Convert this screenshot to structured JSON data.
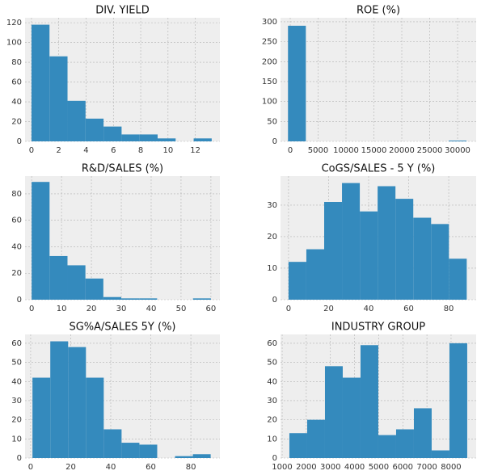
{
  "chart_data": [
    {
      "type": "histogram",
      "title": "DIV. YIELD",
      "bins": [
        0,
        1.32,
        2.64,
        3.96,
        5.28,
        6.6,
        7.92,
        9.24,
        10.56,
        11.88,
        13.2
      ],
      "values": [
        118,
        86,
        41,
        23,
        15,
        7,
        7,
        3,
        0,
        3
      ],
      "color": "#348ABD",
      "xlim": [
        -0.47,
        13.8
      ],
      "ylim": [
        0,
        125
      ],
      "xticks": [
        0,
        2,
        4,
        6,
        8,
        10,
        12
      ],
      "yticks": [
        0,
        20,
        40,
        60,
        80,
        100,
        120
      ],
      "grid": true
    },
    {
      "type": "histogram",
      "title": "ROE (%)",
      "bins": [
        -400,
        2800,
        6000,
        9200,
        12400,
        15600,
        18800,
        22000,
        25200,
        28400,
        31600
      ],
      "values": [
        290,
        0,
        0,
        0,
        0,
        0,
        0,
        0,
        0,
        2
      ],
      "color": "#348ABD",
      "xlim": [
        -1740,
        33330
      ],
      "ylim": [
        0,
        310
      ],
      "xticks": [
        0,
        5000,
        10000,
        15000,
        20000,
        25000,
        30000
      ],
      "yticks": [
        0,
        50,
        100,
        150,
        200,
        250,
        300
      ],
      "grid": true
    },
    {
      "type": "histogram",
      "title": "R&D/SALES (%)",
      "bins": [
        0,
        6,
        12,
        18,
        24,
        30,
        36,
        42,
        48,
        54,
        60
      ],
      "values": [
        89,
        33,
        26,
        16,
        2,
        1,
        1,
        0,
        0,
        1
      ],
      "color": "#348ABD",
      "xlim": [
        -2.2,
        63
      ],
      "ylim": [
        0,
        93.4
      ],
      "xticks": [
        0,
        10,
        20,
        30,
        40,
        50,
        60
      ],
      "yticks": [
        0,
        20,
        40,
        60,
        80
      ],
      "grid": true
    },
    {
      "type": "histogram",
      "title": "CoGS/SALES - 5 Y (%)",
      "bins": [
        0,
        8.9,
        17.8,
        26.7,
        35.6,
        44.5,
        53.4,
        62.3,
        71.2,
        80.1,
        89
      ],
      "values": [
        12,
        16,
        31,
        37,
        28,
        36,
        32,
        26,
        24,
        13
      ],
      "color": "#348ABD",
      "xlim": [
        -4,
        93.7
      ],
      "ylim": [
        0,
        39.2
      ],
      "xticks": [
        0,
        20,
        40,
        60,
        80
      ],
      "yticks": [
        0,
        10,
        20,
        30
      ],
      "grid": true
    },
    {
      "type": "histogram",
      "title": "SG%A/SALES 5Y (%)",
      "bins": [
        0.9,
        9.8,
        18.7,
        27.6,
        36.5,
        45.4,
        54.3,
        63.2,
        72.1,
        81,
        89.9
      ],
      "values": [
        42,
        61,
        58,
        42,
        15,
        8,
        7,
        0,
        1,
        2
      ],
      "color": "#348ABD",
      "xlim": [
        -2.8,
        94.5
      ],
      "ylim": [
        0,
        64.6
      ],
      "xticks": [
        0,
        20,
        40,
        60,
        80
      ],
      "yticks": [
        0,
        10,
        20,
        30,
        40,
        50,
        60
      ],
      "grid": true
    },
    {
      "type": "histogram",
      "title": "INDUSTRY GROUP",
      "bins": [
        1300,
        2037,
        2774,
        3511,
        4248,
        4985,
        5722,
        6459,
        7196,
        7933,
        8670
      ],
      "values": [
        13,
        20,
        48,
        42,
        59,
        12,
        15,
        26,
        4,
        60
      ],
      "color": "#348ABD",
      "xlim": [
        932,
        9040
      ],
      "ylim": [
        0,
        64.6
      ],
      "xticks": [
        1000,
        2000,
        3000,
        4000,
        5000,
        6000,
        7000,
        8000
      ],
      "yticks": [
        0,
        10,
        20,
        30,
        40,
        50,
        60
      ],
      "grid": true
    }
  ]
}
